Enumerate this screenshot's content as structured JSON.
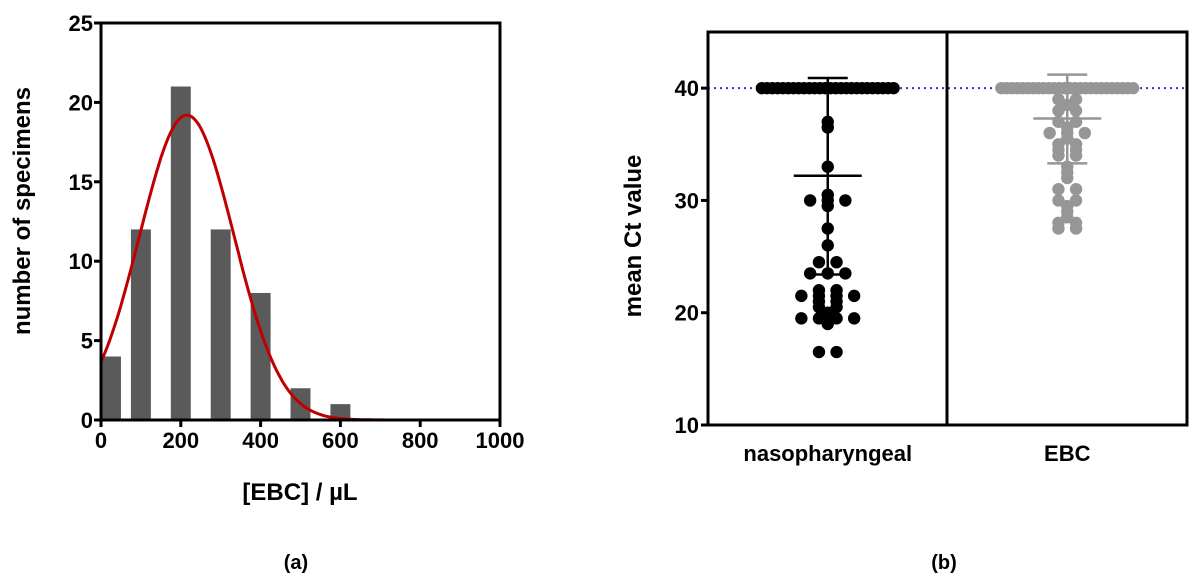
{
  "chart_data": [
    {
      "type": "bar",
      "panel_label": "(a)",
      "xlabel": "[EBC] / µL",
      "ylabel": "number of specimens",
      "xlim": [
        0,
        1000
      ],
      "ylim": [
        0,
        25
      ],
      "xticks": [
        0,
        200,
        400,
        600,
        800,
        1000
      ],
      "yticks": [
        0,
        5,
        10,
        15,
        20,
        25
      ],
      "bins": [
        {
          "x": 25,
          "value": 4
        },
        {
          "x": 100,
          "value": 12
        },
        {
          "x": 200,
          "value": 21
        },
        {
          "x": 300,
          "value": 12
        },
        {
          "x": 400,
          "value": 8
        },
        {
          "x": 500,
          "value": 2
        },
        {
          "x": 600,
          "value": 1
        }
      ],
      "bar_width": 50,
      "bar_color": "#5a5a5a",
      "fit_curve": {
        "type": "gaussian",
        "amplitude": 19.2,
        "mean": 215,
        "sd": 118,
        "color": "#c00000"
      },
      "grid": false
    },
    {
      "type": "scatter",
      "panel_label": "(b)",
      "ylabel": "mean Ct value",
      "ylim": [
        10,
        45
      ],
      "yticks": [
        10,
        20,
        30,
        40
      ],
      "categories": [
        "nasopharyngeal",
        "EBC"
      ],
      "reference_line": {
        "y": 40,
        "style": "dotted",
        "color": "#3333cc"
      },
      "series": [
        {
          "category": "nasopharyngeal",
          "color": "#000000",
          "mean": 32.2,
          "sd_upper": 40.9,
          "sd_lower": 23.4,
          "censored_at_40_count": 26,
          "points": [
            36.5,
            37,
            33,
            30.5,
            30,
            30,
            29.5,
            30,
            27.5,
            26,
            24.5,
            24.5,
            23.5,
            23.5,
            23.5,
            22,
            21.5,
            21.5,
            22,
            21.5,
            21.5,
            21,
            21,
            20.5,
            20.5,
            20,
            19.5,
            19.5,
            19.5,
            19,
            19.5,
            16.5,
            16.5
          ]
        },
        {
          "category": "EBC",
          "color": "#969696",
          "mean": 37.3,
          "sd_upper": 41.2,
          "sd_lower": 33.3,
          "censored_at_40_count": 26,
          "points": [
            39,
            39,
            38.5,
            38,
            38,
            37,
            37,
            36.5,
            36,
            36,
            36,
            35.5,
            35,
            35,
            34.5,
            34.5,
            34,
            34,
            33,
            32.5,
            32,
            31,
            31,
            30,
            30,
            29.5,
            29,
            28.5,
            28,
            28,
            27.5,
            27.5
          ]
        }
      ],
      "grid": false
    }
  ]
}
